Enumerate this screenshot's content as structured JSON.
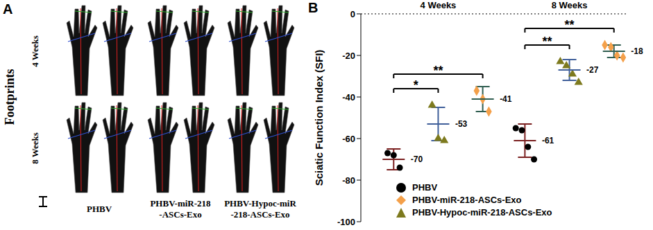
{
  "panel_labels": [
    "A",
    "B"
  ],
  "panel_a": {
    "title": "Footprints",
    "rows": [
      "4 Weeks",
      "8 Weeks"
    ],
    "columns": [
      [
        "PHBV"
      ],
      [
        "PHBV-miR-218",
        "-ASCs-Exo"
      ],
      [
        "PHBV-Hypoc-miR",
        "-218-ASCs-Exo"
      ]
    ]
  },
  "chart_data": {
    "type": "scatter",
    "y_label": "Sciatic Function Index (SFI)",
    "categories": [
      "4 Weeks",
      "8 Weeks"
    ],
    "ylim": [
      -100,
      0
    ],
    "yticks": [
      -100,
      -80,
      -60,
      -40,
      -20,
      0
    ],
    "legend": "bottom",
    "data_labels": true,
    "series": [
      {
        "name": "PHBV",
        "color": "#000000",
        "marker": "circle",
        "points": [
          [
            -67,
            -68,
            -74
          ],
          [
            -55,
            -56,
            -64,
            -70
          ]
        ],
        "values": [
          -70,
          -61
        ],
        "error": [
          5,
          8
        ]
      },
      {
        "name": "PHBV-miR-218-ASCs-Exo",
        "color": "#f4a04a",
        "marker": "diamond",
        "points": [
          [
            -37,
            -41,
            -47
          ],
          [
            -15,
            -16,
            -20,
            -21
          ]
        ],
        "values": [
          -41,
          -18
        ],
        "error": [
          6,
          3
        ]
      },
      {
        "name": "PHBV-Hypoc-miR-218-ASCs-Exo",
        "color": "#7d7a1e",
        "marker": "triangle",
        "points": [
          [
            -44,
            -60,
            -61
          ],
          [
            -23,
            -25,
            -29,
            -33
          ]
        ],
        "values": [
          -53,
          -27
        ],
        "error": [
          8,
          5
        ]
      }
    ],
    "annotations": [
      {
        "category": "4 Weeks",
        "from": "PHBV",
        "to": "PHBV-Hypoc-miR-218-ASCs-Exo",
        "label": "*"
      },
      {
        "category": "4 Weeks",
        "from": "PHBV",
        "to": "PHBV-miR-218-ASCs-Exo",
        "label": "**"
      },
      {
        "category": "8 Weeks",
        "from": "PHBV",
        "to": "PHBV-Hypoc-miR-218-ASCs-Exo",
        "label": "**"
      },
      {
        "category": "8 Weeks",
        "from": "PHBV",
        "to": "PHBV-miR-218-ASCs-Exo",
        "label": "**"
      }
    ]
  }
}
